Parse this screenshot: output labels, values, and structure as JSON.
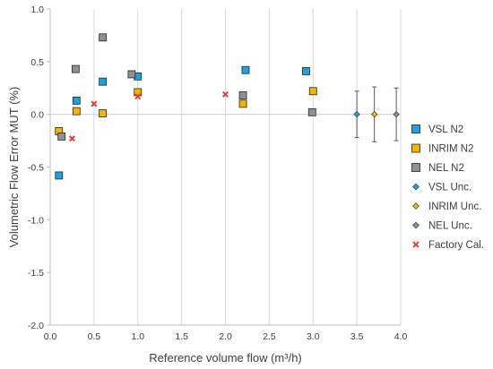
{
  "chart_data": {
    "type": "scatter",
    "xlabel": "Reference volume flow (m³/h)",
    "ylabel": "Volumetric Flow Error MUT (%)",
    "xlim": [
      0,
      4
    ],
    "ylim": [
      -2,
      1
    ],
    "x_ticks": [
      "0.0",
      "0.5",
      "1.0",
      "1.5",
      "2.0",
      "2.5",
      "3.0",
      "3.5",
      "4.0"
    ],
    "y_ticks": [
      "1.0",
      "0.5",
      "0.0",
      "-0.5",
      "-1.0",
      "-1.5",
      "-2.0"
    ],
    "grid": "vertical",
    "legend_position": "right",
    "series": [
      {
        "name": "VSL N2",
        "marker": "square",
        "color": "#1aa3dd",
        "points": [
          [
            0.1,
            -0.58
          ],
          [
            0.3,
            0.13
          ],
          [
            0.6,
            0.31
          ],
          [
            1.0,
            0.36
          ],
          [
            2.23,
            0.42
          ],
          [
            2.92,
            0.41
          ]
        ]
      },
      {
        "name": "INRIM N2",
        "marker": "square",
        "color": "#f5b400",
        "points": [
          [
            0.1,
            -0.16
          ],
          [
            0.3,
            0.03
          ],
          [
            0.6,
            0.01
          ],
          [
            1.0,
            0.21
          ],
          [
            2.2,
            0.1
          ],
          [
            3.0,
            0.22
          ]
        ]
      },
      {
        "name": "NEL N2",
        "marker": "square",
        "color": "#909090",
        "points": [
          [
            0.13,
            -0.21
          ],
          [
            0.29,
            0.43
          ],
          [
            0.6,
            0.73
          ],
          [
            0.93,
            0.38
          ],
          [
            2.2,
            0.18
          ],
          [
            2.99,
            0.02
          ]
        ]
      },
      {
        "name": "VSL Unc.",
        "marker": "diamond",
        "color": "#1aa3dd",
        "points": [
          [
            3.5,
            0.0
          ]
        ],
        "error": 0.22
      },
      {
        "name": "INRIM Unc.",
        "marker": "diamond",
        "color": "#f5b400",
        "points": [
          [
            3.7,
            0.0
          ]
        ],
        "error": 0.26
      },
      {
        "name": "NEL Unc.",
        "marker": "diamond",
        "color": "#909090",
        "points": [
          [
            3.95,
            0.0
          ]
        ],
        "error": 0.25
      },
      {
        "name": "Factory Cal.",
        "marker": "x",
        "color": "#e8312f",
        "points": [
          [
            0.25,
            -0.23
          ],
          [
            0.5,
            0.1
          ],
          [
            1.0,
            0.17
          ],
          [
            2.0,
            0.19
          ]
        ]
      }
    ]
  }
}
